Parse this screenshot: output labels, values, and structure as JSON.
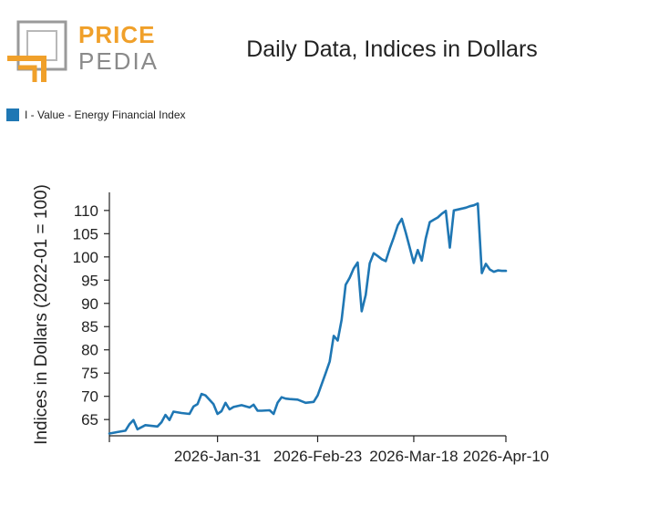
{
  "brand": {
    "word_top": "PRICE",
    "word_bottom": "PEDIA",
    "colors": {
      "orange": "#f0a02a",
      "gray": "#8a8a8a"
    }
  },
  "chart_data": {
    "type": "line",
    "title": "Daily Data, Indices in Dollars",
    "ylabel": "Indices in Dollars (2022-01 = 100)",
    "xlabel": "",
    "ylim": [
      61.5,
      113.5
    ],
    "yticks": [
      65,
      70,
      75,
      80,
      85,
      90,
      95,
      100,
      105,
      110
    ],
    "xlim": [
      0,
      99
    ],
    "xticks": [
      {
        "x": 0,
        "label": ""
      },
      {
        "x": 27,
        "label": "2026-Jan-31"
      },
      {
        "x": 52,
        "label": "2026-Feb-23"
      },
      {
        "x": 76,
        "label": "2026-Mar-18"
      },
      {
        "x": 99,
        "label": "2026-Apr-10"
      }
    ],
    "color": "#1f77b4",
    "series": [
      {
        "name": "I - Value - Energy Financial Index",
        "x": [
          0,
          2,
          4,
          5,
          6,
          7,
          9,
          10,
          12,
          13,
          14,
          15,
          16,
          18,
          20,
          21,
          22,
          23,
          24,
          26,
          27,
          28,
          29,
          30,
          31,
          32,
          33,
          35,
          36,
          37,
          38,
          40,
          41,
          42,
          43,
          44,
          45,
          47,
          49,
          50,
          51,
          52,
          53,
          54,
          55,
          56,
          57,
          58,
          59,
          60,
          61,
          62,
          63,
          64,
          65,
          66,
          67,
          68,
          69,
          70,
          71,
          72,
          73,
          74,
          75,
          76,
          77,
          78,
          79,
          80,
          81,
          82,
          83,
          84,
          85,
          86,
          87,
          88,
          89,
          90,
          91,
          92,
          93,
          94,
          95,
          96,
          97,
          98,
          99
        ],
        "values": [
          62.0,
          62.3,
          62.6,
          64.0,
          64.9,
          62.9,
          63.8,
          63.7,
          63.5,
          64.4,
          66.0,
          64.9,
          66.7,
          66.4,
          66.2,
          67.8,
          68.3,
          70.5,
          70.2,
          68.3,
          66.2,
          66.8,
          68.6,
          67.2,
          67.7,
          67.9,
          68.1,
          67.6,
          68.2,
          66.9,
          66.9,
          67.0,
          66.2,
          68.6,
          69.8,
          69.5,
          69.4,
          69.3,
          68.6,
          68.7,
          68.8,
          70.2,
          72.6,
          75.0,
          77.5,
          83.0,
          82.0,
          86.5,
          94.0,
          95.5,
          97.5,
          98.8,
          88.3,
          91.8,
          98.6,
          100.8,
          100.2,
          99.5,
          99.1,
          101.8,
          104.2,
          106.8,
          108.2,
          105.2,
          102.0,
          98.7,
          101.5,
          99.2,
          104.0,
          107.5,
          108.0,
          108.5,
          109.3,
          109.9,
          102.0,
          110.0,
          110.2,
          110.4,
          110.6,
          110.9,
          111.1,
          111.5,
          96.5,
          98.5,
          97.3,
          96.8,
          97.1,
          97.0,
          97.0
        ]
      }
    ]
  }
}
